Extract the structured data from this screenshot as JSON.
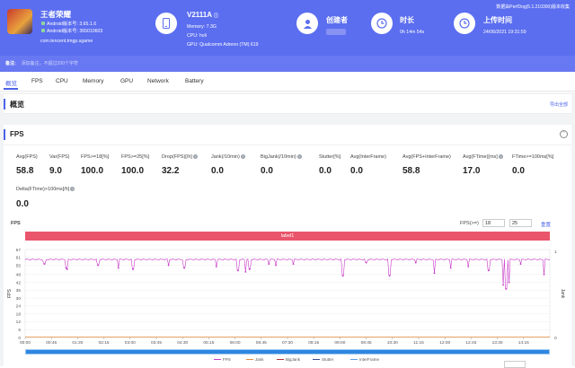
{
  "app": {
    "title": "王者荣耀",
    "android_version_line": "Android版本号: 3.65.1.6",
    "android_code_line": "Android版本号: 365010603",
    "package": "com.tencent.tmgp.sgame",
    "icon": "game-app-icon"
  },
  "device": {
    "model": "V2111A",
    "memory": "Memory: 7.3G",
    "cpu": "CPU: holi",
    "gpu": "GPU: Qualcomm Adreno (TM) 619",
    "icon": "phone-icon"
  },
  "creator": {
    "label": "创建者",
    "icon": "user-icon"
  },
  "duration": {
    "label": "时长",
    "value": "0h 14m 54s",
    "icon": "clock-icon"
  },
  "upload": {
    "label": "上传时间",
    "value": "24/06/2021 19:31:59",
    "icon": "upload-clock-icon"
  },
  "version_text": "数据由PerfDog(5.1.210300)版本收集",
  "note": {
    "label": "备注:",
    "placeholder": "添加备注，不超过200个字符"
  },
  "tabs": [
    "概览",
    "FPS",
    "CPU",
    "Memory",
    "GPU",
    "Network",
    "Battery"
  ],
  "overview": {
    "title": "概览",
    "export": "导出全部"
  },
  "fps_section": {
    "title": "FPS",
    "collapse": "⌃",
    "metrics_row1": [
      {
        "label": "Avg(FPS)",
        "value": "58.8",
        "help": false
      },
      {
        "label": "Var(FPS)",
        "value": "9.0",
        "help": false
      },
      {
        "label": "FPS>=18[%]",
        "value": "100.0",
        "help": false
      },
      {
        "label": "FPS>=25[%]",
        "value": "100.0",
        "help": false
      },
      {
        "label": "Drop(FPS)[/h]",
        "value": "32.2",
        "help": true
      },
      {
        "label": "Jank(/10min)",
        "value": "0.0",
        "help": true
      },
      {
        "label": "BigJank(/10min)",
        "value": "0.0",
        "help": true
      },
      {
        "label": "Stutter[%]",
        "value": "0.0",
        "help": false
      },
      {
        "label": "Avg(InterFrame)",
        "value": "0.0",
        "help": false
      },
      {
        "label": "Avg(FPS+InterFrame)",
        "value": "58.8",
        "help": false
      },
      {
        "label": "Avg(FTime)[ms]",
        "value": "17.0",
        "help": true
      },
      {
        "label": "FTime>=100ms[%]",
        "value": "0.0",
        "help": false
      }
    ],
    "metrics_row2": [
      {
        "label": "Delta(FTime)>100ms[/h]",
        "value": "0.0",
        "help": true
      }
    ]
  },
  "chart_controls": {
    "title": "FPS",
    "threshold_label": "FPS(>=)",
    "threshold_1": "18",
    "threshold_2": "25",
    "reset": "重置"
  },
  "chart_data": {
    "type": "line",
    "band_label": "label1",
    "ylabel": "FPS",
    "y2label": "Jank",
    "yticks": [
      0,
      6,
      12,
      18,
      24,
      30,
      36,
      42,
      48,
      55,
      61,
      67
    ],
    "ylim": [
      0,
      67
    ],
    "xticks": [
      "00:00",
      "00:45",
      "01:30",
      "02:15",
      "03:00",
      "03:45",
      "04:30",
      "05:15",
      "06:00",
      "06:45",
      "07:30",
      "08:15",
      "09:00",
      "09:45",
      "10:30",
      "11:15",
      "12:00",
      "12:45",
      "13:30",
      "14:15"
    ],
    "y2ticks": [
      0,
      1
    ],
    "baseline_fps": 59.5,
    "dips": [
      {
        "t": "00:33",
        "fps": 56
      },
      {
        "t": "01:10",
        "fps": 53
      },
      {
        "t": "01:12",
        "fps": 52
      },
      {
        "t": "02:05",
        "fps": 55
      },
      {
        "t": "02:40",
        "fps": 53
      },
      {
        "t": "03:05",
        "fps": 52
      },
      {
        "t": "04:06",
        "fps": 55
      },
      {
        "t": "04:33",
        "fps": 53
      },
      {
        "t": "05:28",
        "fps": 54
      },
      {
        "t": "06:05",
        "fps": 51
      },
      {
        "t": "06:18",
        "fps": 50
      },
      {
        "t": "06:25",
        "fps": 52
      },
      {
        "t": "06:58",
        "fps": 56
      },
      {
        "t": "07:10",
        "fps": 55
      },
      {
        "t": "07:40",
        "fps": 56
      },
      {
        "t": "09:05",
        "fps": 47
      },
      {
        "t": "09:45",
        "fps": 57
      },
      {
        "t": "10:25",
        "fps": 47
      },
      {
        "t": "11:10",
        "fps": 57
      },
      {
        "t": "11:42",
        "fps": 49
      },
      {
        "t": "12:10",
        "fps": 53
      },
      {
        "t": "12:40",
        "fps": 54
      },
      {
        "t": "13:15",
        "fps": 51
      },
      {
        "t": "13:40",
        "fps": 40
      },
      {
        "t": "13:45",
        "fps": 37
      },
      {
        "t": "13:50",
        "fps": 42
      },
      {
        "t": "14:10",
        "fps": 56
      },
      {
        "t": "14:50",
        "fps": 48
      }
    ],
    "series": [
      {
        "name": "FPS",
        "color": "#c93ac8"
      },
      {
        "name": "Jank",
        "color": "#e58a3a"
      },
      {
        "name": "BigJank",
        "color": "#b03030"
      },
      {
        "name": "Stutter",
        "color": "#3a4a8a"
      },
      {
        "name": "InterFrame",
        "color": "#5aa0e0"
      }
    ],
    "jank_values": "all 0",
    "grid": true
  },
  "colors": {
    "header": "#5b6ef0",
    "accent": "#4a63e8",
    "fps_line": "#c93ac8",
    "label_band": "#e9556b"
  }
}
